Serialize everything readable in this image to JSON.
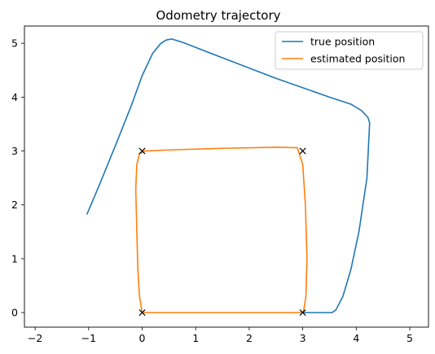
{
  "chart_data": {
    "type": "line",
    "title": "Odometry trajectory",
    "xlabel": "",
    "ylabel": "",
    "xlim": [
      -2.2,
      5.35
    ],
    "ylim": [
      -0.27,
      5.32
    ],
    "x_ticks": [
      -2,
      -1,
      0,
      1,
      2,
      3,
      4,
      5
    ],
    "y_ticks": [
      0,
      1,
      2,
      3,
      4,
      5
    ],
    "grid": false,
    "legend_position": "top-right",
    "series": [
      {
        "name": "true position",
        "color": "#1f77b4",
        "x": [
          -1.03,
          -0.8,
          -0.5,
          -0.2,
          0.0,
          0.2,
          0.35,
          0.45,
          0.55,
          0.75,
          1.5,
          2.5,
          3.5,
          3.9,
          4.1,
          4.22,
          4.25,
          4.2,
          4.05,
          3.9,
          3.75,
          3.62,
          3.55,
          3.4,
          3.1,
          3.0
        ],
        "y": [
          1.83,
          2.37,
          3.1,
          3.85,
          4.4,
          4.82,
          5.0,
          5.06,
          5.08,
          5.02,
          4.73,
          4.35,
          4.0,
          3.87,
          3.75,
          3.62,
          3.52,
          2.5,
          1.5,
          0.8,
          0.3,
          0.05,
          0.0,
          0.0,
          0.0,
          0.0
        ]
      },
      {
        "name": "estimated position",
        "color": "#ff7f0e",
        "x": [
          0.0,
          3.0,
          3.02,
          3.06,
          3.08,
          3.05,
          3.0,
          2.9,
          2.5,
          1.5,
          0.5,
          0.05,
          -0.05,
          -0.1,
          -0.12,
          -0.1,
          -0.08,
          -0.05,
          0.0
        ],
        "y": [
          0.0,
          0.0,
          0.05,
          0.3,
          1.0,
          2.0,
          2.75,
          3.06,
          3.07,
          3.05,
          3.02,
          3.0,
          2.95,
          2.75,
          2.3,
          1.5,
          0.8,
          0.3,
          0.0
        ]
      }
    ],
    "markers": {
      "symbol": "x",
      "color": "#000000",
      "points": [
        [
          0,
          0
        ],
        [
          3,
          0
        ],
        [
          3,
          3
        ],
        [
          0,
          3
        ]
      ]
    }
  }
}
